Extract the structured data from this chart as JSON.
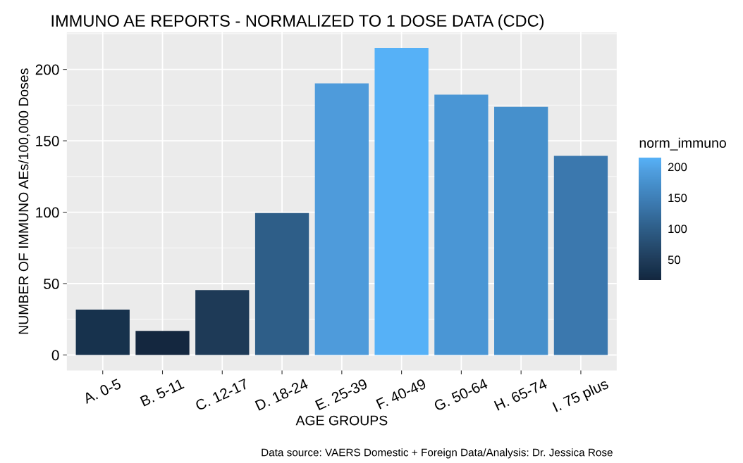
{
  "chart_data": {
    "type": "bar",
    "title": "IMMUNO AE REPORTS - NORMALIZED TO 1 DOSE DATA (CDC)",
    "xlabel": "AGE GROUPS",
    "ylabel": "NUMBER OF IMMUNO AEs/100,000 Doses",
    "clabel": "norm_immuno",
    "categories": [
      "A. 0-5",
      "B. 5-11",
      "C. 12-17",
      "D. 18-24",
      "E. 25-39",
      "F. 40-49",
      "G. 50-64",
      "H. 65-74",
      "I. 75 plus"
    ],
    "values": [
      31.8,
      16.9,
      45.4,
      99.4,
      190.2,
      215.1,
      182.3,
      173.8,
      139.4
    ],
    "colors": [
      "#17324d",
      "#14273f",
      "#1e3a57",
      "#2e5e88",
      "#4e9bdb",
      "#56b1f7",
      "#4a96d5",
      "#4690cc",
      "#3b78ae"
    ],
    "ylim": [
      -10.8,
      225.9
    ],
    "yticks": [
      0,
      50,
      100,
      150,
      200
    ],
    "clim": [
      16.9,
      215.1
    ],
    "cticks": [
      50,
      100,
      150,
      200
    ],
    "grid": true,
    "annotations": [
      "Data source: VAERS Domestic + Foreign Data/Analysis: Dr. Jessica Rose"
    ]
  }
}
